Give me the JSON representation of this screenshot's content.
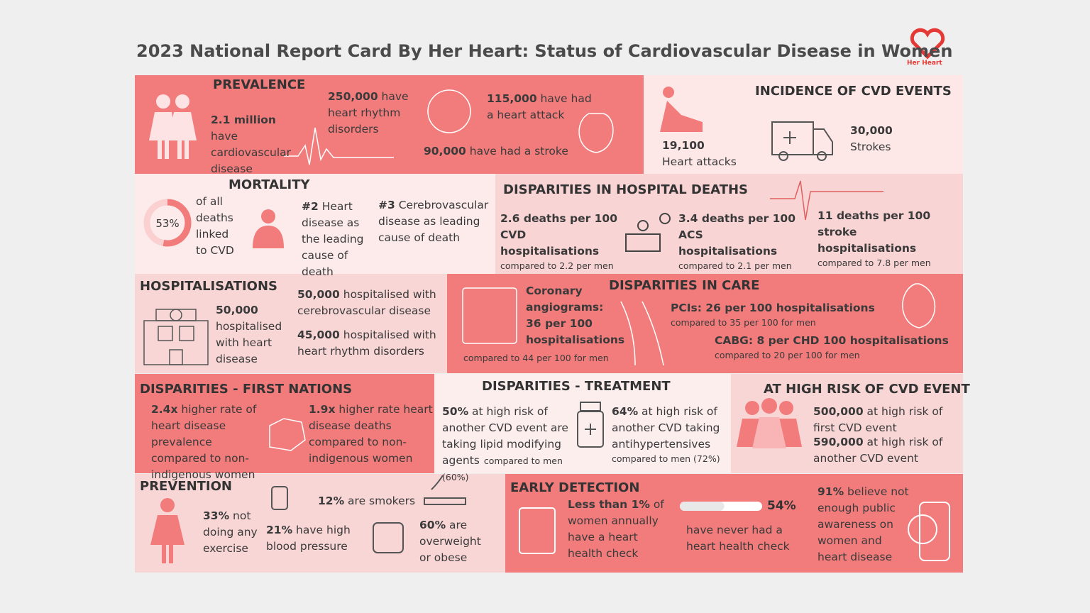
{
  "header": {
    "title": "2023 National Report Card By Her Heart: Status of Cardiovascular Disease in Women",
    "logo": "Her Heart"
  },
  "prevalence": {
    "title": "PREVALENCE",
    "items": [
      {
        "bold": "2.1 million",
        "text": " have cardiovascular disease"
      },
      {
        "bold": "250,000",
        "text": " have heart rhythm disorders"
      },
      {
        "bold": "115,000",
        "text": " have had a heart attack"
      },
      {
        "bold": "90,000",
        "text": " have had a stroke"
      }
    ]
  },
  "incidence": {
    "title": "INCIDENCE OF CVD EVENTS",
    "items": [
      {
        "bold": "19,100",
        "text": "Heart attacks"
      },
      {
        "bold": "30,000",
        "text": "Strokes"
      }
    ]
  },
  "mortality": {
    "title": "MORTALITY",
    "donut": {
      "value": 53,
      "label": "53%"
    },
    "donut_text": "of all deaths linked to CVD",
    "items": [
      {
        "bold": "#2",
        "text": " Heart disease as the leading cause of death"
      },
      {
        "bold": "#3",
        "text": " Cerebrovascular disease as leading cause of death"
      }
    ]
  },
  "hospital_deaths": {
    "title": "DISPARITIES IN HOSPITAL DEATHS",
    "items": [
      {
        "bold": "2.6 deaths per 100 CVD hospitalisations",
        "note": "compared to 2.2 per men"
      },
      {
        "bold": "3.4 deaths per 100 ACS hospitalisations",
        "note": "compared to 2.1 per men"
      },
      {
        "bold": "11 deaths per 100 stroke hospitalisations",
        "note": "compared to 7.8 per men"
      }
    ]
  },
  "hospitalisations": {
    "title": "HOSPITALISATIONS",
    "items": [
      {
        "bold": "50,000",
        "text": " hospitalised with heart disease"
      },
      {
        "bold": "50,000",
        "text": " hospitalised with cerebrovascular disease"
      },
      {
        "bold": "45,000",
        "text": " hospitalised with heart rhythm disorders"
      }
    ]
  },
  "care": {
    "title": "DISPARITIES IN CARE",
    "items": [
      {
        "bold": "Coronary angiograms: 36 per 100 hospitalisations",
        "note": "compared to 44 per 100 for men"
      },
      {
        "bold": "PCIs: 26 per 100 hospitalisations",
        "note": "compared to 35 per 100 for men"
      },
      {
        "bold": "CABG: 8 per CHD 100 hospitalisations",
        "note": "compared to 20 per 100 for men"
      }
    ]
  },
  "first_nations": {
    "title": "DISPARITIES - FIRST NATIONS",
    "items": [
      {
        "bold": "2.4x",
        "text": " higher rate of heart disease prevalence compared to non-indigenous women"
      },
      {
        "bold": "1.9x",
        "text": " higher rate heart disease deaths compared to non-indigenous women"
      }
    ]
  },
  "treatment": {
    "title": "DISPARITIES - TREATMENT",
    "items": [
      {
        "bold": "50%",
        "text": " at high risk of another CVD event are taking lipid modifying agents",
        "note": "compared to men (60%)"
      },
      {
        "bold": "64%",
        "text": " at high risk of another CVD taking antihypertensives",
        "note": "compared to men (72%)"
      }
    ]
  },
  "high_risk": {
    "title": "AT HIGH RISK OF CVD EVENT",
    "items": [
      {
        "bold": "500,000",
        "text": " at high risk of first CVD event"
      },
      {
        "bold": "590,000",
        "text": " at high risk of another CVD event"
      }
    ]
  },
  "prevention": {
    "title": "PREVENTION",
    "items": [
      {
        "bold": "33%",
        "text": " not doing any exercise"
      },
      {
        "bold": "21%",
        "text": " have high blood pressure"
      },
      {
        "bold": "12%",
        "text": " are smokers"
      },
      {
        "bold": "60%",
        "text": " are overweight or obese"
      }
    ]
  },
  "early_detection": {
    "title": "EARLY DETECTION",
    "items": [
      {
        "bold": "Less than 1%",
        "text": " of women annually have a heart health check"
      },
      {
        "bold": "91%",
        "text": " believe not enough public awareness on women and heart disease"
      }
    ],
    "bar": {
      "value": 54,
      "label": "54%",
      "text": "have never had a heart health check"
    }
  }
}
